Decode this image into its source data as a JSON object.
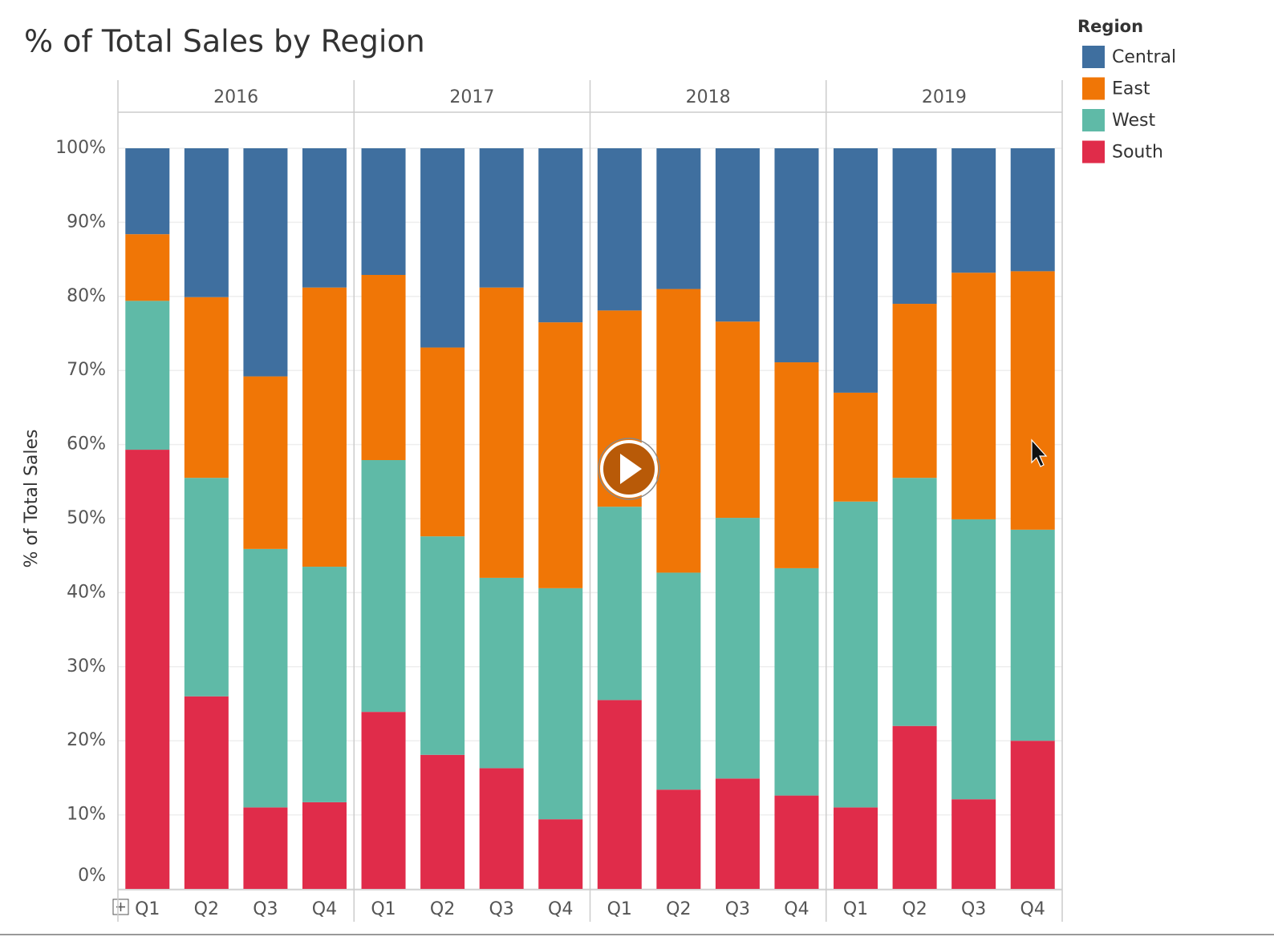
{
  "chart_data": {
    "type": "stacked_bar",
    "title": "% of Total Sales by Region",
    "y_label": "% of Total Sales",
    "legend_title": "Region",
    "legend": "right",
    "grid": true,
    "facets": [
      "2016",
      "2017",
      "2018",
      "2019"
    ],
    "categories": [
      "Q1",
      "Q2",
      "Q3",
      "Q4",
      "Q1",
      "Q2",
      "Q3",
      "Q4",
      "Q1",
      "Q2",
      "Q3",
      "Q4",
      "Q1",
      "Q2",
      "Q3",
      "Q4"
    ],
    "series": [
      {
        "name": "Central",
        "color": "#3f6f9f",
        "values": [
          11.6,
          20.1,
          30.8,
          18.8,
          17.1,
          26.9,
          18.8,
          23.5,
          21.9,
          19.0,
          23.4,
          28.9,
          33.0,
          21.0,
          16.8,
          16.6
        ]
      },
      {
        "name": "East",
        "color": "#f07606",
        "values": [
          9.0,
          24.4,
          23.3,
          37.7,
          25.0,
          25.5,
          39.2,
          35.9,
          26.5,
          38.3,
          26.5,
          27.8,
          14.7,
          23.5,
          33.3,
          34.9
        ]
      },
      {
        "name": "West",
        "color": "#5fbaa7",
        "values": [
          20.1,
          29.5,
          34.9,
          31.8,
          34.0,
          29.5,
          25.7,
          31.2,
          26.1,
          29.3,
          35.2,
          30.7,
          41.3,
          33.5,
          37.8,
          28.5
        ]
      },
      {
        "name": "South",
        "color": "#e02c4a",
        "values": [
          59.3,
          26.0,
          11.0,
          11.7,
          23.9,
          18.1,
          16.3,
          9.4,
          25.5,
          13.4,
          14.9,
          12.6,
          11.0,
          22.0,
          12.1,
          20.0
        ]
      }
    ],
    "ylim": [
      0,
      100
    ],
    "yticks": [
      {
        "value": 0,
        "label": "0%"
      },
      {
        "value": 10,
        "label": "10%"
      },
      {
        "value": 20,
        "label": "20%"
      },
      {
        "value": 30,
        "label": "30%"
      },
      {
        "value": 40,
        "label": "40%"
      },
      {
        "value": 50,
        "label": "50%"
      },
      {
        "value": 60,
        "label": "60%"
      },
      {
        "value": 70,
        "label": "70%"
      },
      {
        "value": 80,
        "label": "80%"
      },
      {
        "value": 90,
        "label": "90%"
      },
      {
        "value": 100,
        "label": "100%"
      }
    ]
  }
}
